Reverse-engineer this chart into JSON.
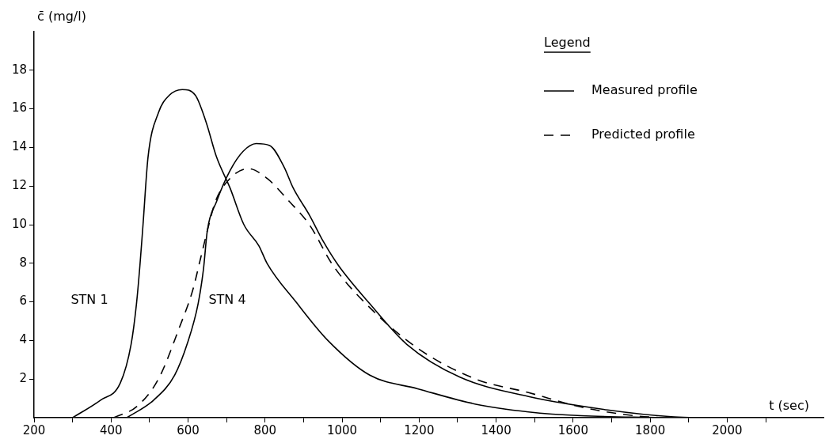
{
  "chart_data": {
    "type": "line",
    "xlabel": "t (sec)",
    "ylabel": "c̄ (mg/l)",
    "legend_title": "Legend",
    "legend": "top right",
    "grid": false,
    "xlim": [
      200,
      2250
    ],
    "ylim": [
      0,
      20
    ],
    "xticks": [
      200,
      {
        "value": 300,
        "label": null
      },
      400,
      {
        "value": 500,
        "label": null
      },
      600,
      {
        "value": 700,
        "label": null
      },
      800,
      {
        "value": 900,
        "label": null
      },
      1000,
      {
        "value": 1100,
        "label": null
      },
      1200,
      {
        "value": 1300,
        "label": null
      },
      1400,
      {
        "value": 1500,
        "label": null
      },
      1600,
      {
        "value": 1700,
        "label": null
      },
      1800,
      {
        "value": 1900,
        "label": null
      },
      2000,
      {
        "value": 2100,
        "label": null
      }
    ],
    "yticks": [
      2,
      4,
      6,
      8,
      10,
      12,
      14,
      16,
      18
    ],
    "annotations": [
      "STN 1",
      "STN 4"
    ],
    "series": [
      {
        "name": "Measured profile",
        "color": "#000000",
        "line_style": "solid",
        "x": [
          300,
          372,
          424,
          452,
          466,
          475,
          483,
          496,
          523,
          551,
          585,
          619,
          647,
          674,
          709,
          745,
          784,
          805,
          880,
          963,
          1072,
          1196,
          1347,
          1484,
          1621,
          1827
        ],
        "values": [
          0,
          0.9,
          1.8,
          3.8,
          5.9,
          7.9,
          10,
          13.5,
          15.8,
          16.7,
          17,
          16.7,
          15.3,
          13.5,
          11.9,
          10,
          8.9,
          8,
          6,
          4,
          2.2,
          1.5,
          0.7,
          0.3,
          0.1,
          0
        ]
      },
      {
        "color": "#000000",
        "line_style": "solid",
        "x": [
          441,
          510,
          565,
          599,
          626,
          640,
          650,
          674,
          709,
          743,
          777,
          812,
          849,
          873,
          915,
          952,
          990,
          1072,
          1168,
          1306,
          1484,
          1690,
          1855,
          1924
        ],
        "values": [
          0,
          0.9,
          2.2,
          3.9,
          5.9,
          7.7,
          9.7,
          11.2,
          12.8,
          13.8,
          14.2,
          14.1,
          13,
          11.9,
          10.5,
          9.1,
          7.9,
          5.9,
          3.8,
          2.1,
          1.1,
          0.4,
          0.05,
          0
        ]
      },
      {
        "name": "Predicted profile",
        "color": "#000000",
        "line_style": "dashed",
        "x": [
          407,
          468,
          523,
          578,
          612,
          633,
          654,
          671,
          709,
          757,
          805,
          863,
          915,
          976,
          1072,
          1196,
          1347,
          1484,
          1621,
          1759,
          1827
        ],
        "values": [
          0,
          0.6,
          2,
          4.7,
          6.6,
          8.3,
          10,
          11.2,
          12.4,
          12.9,
          12.4,
          11.2,
          10,
          7.9,
          5.7,
          3.6,
          2,
          1.3,
          0.55,
          0.1,
          0
        ]
      }
    ]
  }
}
